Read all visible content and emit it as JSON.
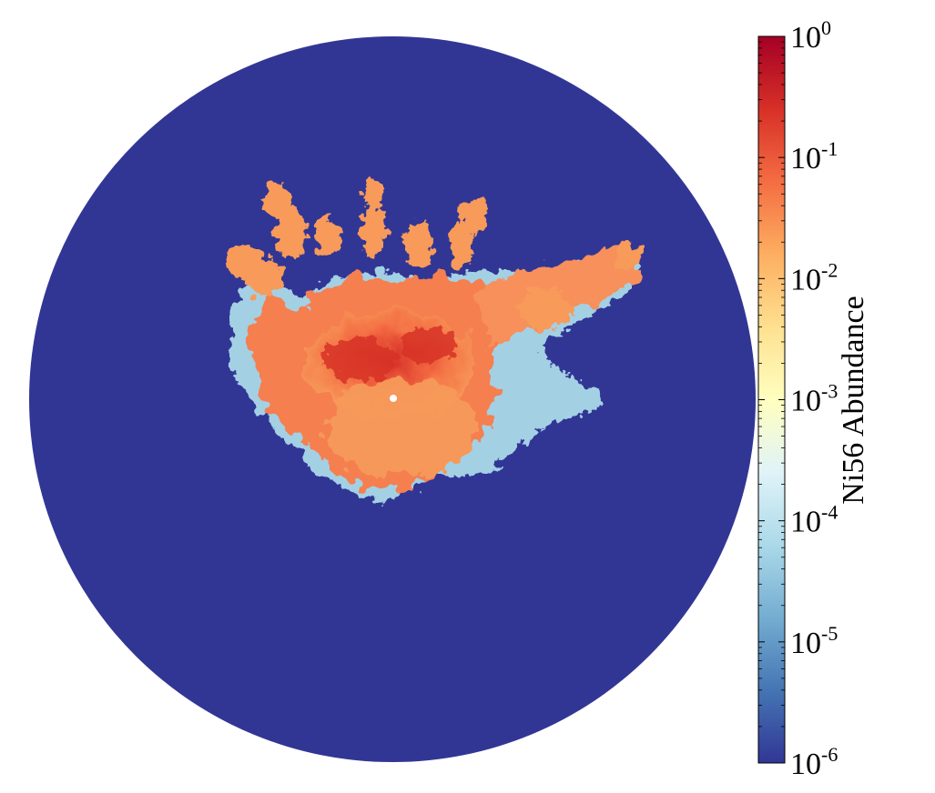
{
  "chart_data": {
    "type": "heatmap",
    "projection": "circular (polar) 2D slice",
    "quantity": "Ni56 abundance",
    "scale": "log",
    "colormap": "RdYlBu_r",
    "colorbar": {
      "label": "Ni56 Abundance",
      "placement": "right",
      "range": [
        1e-06,
        1
      ],
      "ticks": [
        {
          "value": 1.0,
          "base": "10",
          "exp": "0"
        },
        {
          "value": 0.1,
          "base": "10",
          "exp": "-1"
        },
        {
          "value": 0.01,
          "base": "10",
          "exp": "-2"
        },
        {
          "value": 0.001,
          "base": "10",
          "exp": "-3"
        },
        {
          "value": 0.0001,
          "base": "10",
          "exp": "-4"
        },
        {
          "value": 1e-05,
          "base": "10",
          "exp": "-5"
        },
        {
          "value": 1e-06,
          "base": "10",
          "exp": "-6"
        }
      ]
    },
    "background_value": 1e-06,
    "colors": {
      "low": "#313695",
      "mid": "#ffffbf",
      "high": "#a50026"
    }
  }
}
